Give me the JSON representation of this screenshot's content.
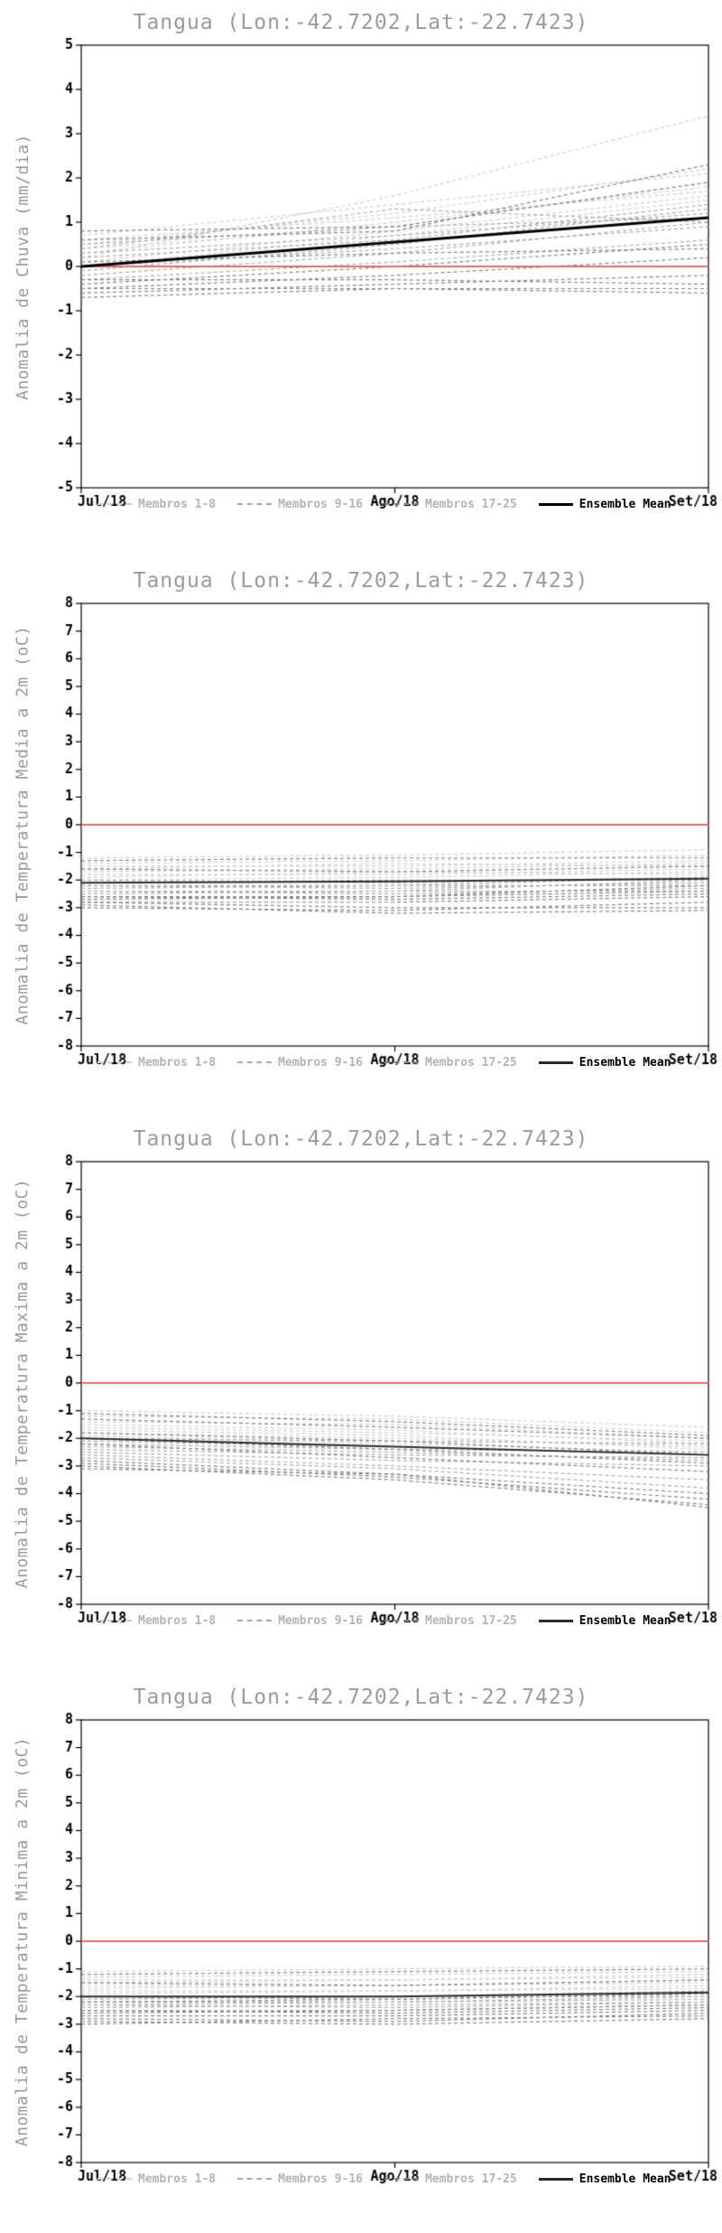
{
  "chart_data": [
    {
      "type": "line",
      "title": "Tangua (Lon:-42.7202,Lat:-22.7423)",
      "ylabel": "Anomalia de Chuva (mm/dia)",
      "ylim": [
        -5,
        5
      ],
      "y_step": 1,
      "x": [
        "Jul/18",
        "Ago/18",
        "Set/18"
      ],
      "reference_line": {
        "value": 0,
        "color": "#e06b6b"
      },
      "member_colors": [
        "#cfcfcf",
        "#ababab",
        "#858585"
      ],
      "mean_color": "#000000",
      "legend": [
        {
          "label": "Membros 1-8",
          "color": "#cfcfcf",
          "style": "dashed"
        },
        {
          "label": "Membros 9-16",
          "color": "#ababab",
          "style": "dashed"
        },
        {
          "label": "Membros 17-25",
          "color": "#858585",
          "style": "dashed"
        },
        {
          "label": "Ensemble Mean",
          "color": "#000000",
          "style": "solid"
        }
      ],
      "members": [
        [
          0.2,
          1.6,
          3.4
        ],
        [
          0.5,
          1.2,
          2.2
        ],
        [
          0.7,
          1.4,
          2.1
        ],
        [
          0.4,
          0.9,
          1.9
        ],
        [
          0.3,
          1.0,
          1.8
        ],
        [
          0.6,
          1.1,
          1.7
        ],
        [
          0.1,
          0.8,
          1.6
        ],
        [
          0.0,
          0.7,
          1.5
        ],
        [
          0.2,
          0.6,
          1.4
        ],
        [
          -0.1,
          0.5,
          1.3
        ],
        [
          0.3,
          0.7,
          1.2
        ],
        [
          0.5,
          0.9,
          1.1
        ],
        [
          -0.2,
          0.3,
          1.0
        ],
        [
          0.0,
          0.4,
          0.9
        ],
        [
          0.4,
          1.3,
          1.0
        ],
        [
          -0.3,
          0.1,
          0.6
        ],
        [
          -0.4,
          0.0,
          0.5
        ],
        [
          0.1,
          0.3,
          0.4
        ],
        [
          -0.5,
          -0.2,
          0.2
        ],
        [
          -0.6,
          -0.4,
          -0.2
        ],
        [
          -0.7,
          -0.5,
          -0.6
        ],
        [
          -0.3,
          -0.3,
          -0.4
        ],
        [
          0.8,
          0.9,
          1.9
        ],
        [
          -0.5,
          -0.5,
          -0.5
        ],
        [
          0.6,
          0.8,
          2.3
        ]
      ],
      "ensemble_mean": [
        0.0,
        0.55,
        1.1
      ]
    },
    {
      "type": "line",
      "title": "Tangua (Lon:-42.7202,Lat:-22.7423)",
      "ylabel": "Anomalia de Temperatura Media a 2m (oC)",
      "ylim": [
        -8,
        8
      ],
      "y_step": 1,
      "x": [
        "Jul/18",
        "Ago/18",
        "Set/18"
      ],
      "reference_line": {
        "value": 0,
        "color": "#e06b6b"
      },
      "member_colors": [
        "#cfcfcf",
        "#ababab",
        "#858585"
      ],
      "mean_color": "#2a2a2a",
      "legend": [
        {
          "label": "Membros 1-8",
          "color": "#cfcfcf",
          "style": "dashed"
        },
        {
          "label": "Membros 9-16",
          "color": "#ababab",
          "style": "dashed"
        },
        {
          "label": "Membros 17-25",
          "color": "#858585",
          "style": "dashed"
        },
        {
          "label": "Ensemble Mean",
          "color": "#2a2a2a",
          "style": "solid"
        }
      ],
      "members": [
        [
          -1.2,
          -1.1,
          -0.9
        ],
        [
          -1.4,
          -1.3,
          -1.1
        ],
        [
          -1.5,
          -1.5,
          -1.3
        ],
        [
          -1.6,
          -1.4,
          -1.5
        ],
        [
          -1.7,
          -1.6,
          -1.4
        ],
        [
          -1.8,
          -1.8,
          -1.6
        ],
        [
          -1.9,
          -1.7,
          -1.8
        ],
        [
          -2.0,
          -1.9,
          -1.7
        ],
        [
          -2.0,
          -2.1,
          -1.9
        ],
        [
          -2.1,
          -2.0,
          -2.0
        ],
        [
          -2.2,
          -2.2,
          -1.9
        ],
        [
          -2.2,
          -2.3,
          -2.1
        ],
        [
          -2.3,
          -2.2,
          -2.2
        ],
        [
          -2.4,
          -2.4,
          -2.0
        ],
        [
          -2.4,
          -2.5,
          -2.3
        ],
        [
          -2.5,
          -2.4,
          -2.4
        ],
        [
          -2.6,
          -2.6,
          -2.2
        ],
        [
          -2.6,
          -2.7,
          -2.5
        ],
        [
          -2.7,
          -2.6,
          -2.4
        ],
        [
          -2.8,
          -2.8,
          -2.6
        ],
        [
          -2.8,
          -3.0,
          -3.0
        ],
        [
          -3.0,
          -3.1,
          -2.8
        ],
        [
          -1.3,
          -1.2,
          -1.2
        ],
        [
          -2.9,
          -3.2,
          -3.1
        ],
        [
          -1.6,
          -1.7,
          -1.5
        ]
      ],
      "ensemble_mean": [
        -2.1,
        -2.05,
        -1.95
      ]
    },
    {
      "type": "line",
      "title": "Tangua (Lon:-42.7202,Lat:-22.7423)",
      "ylabel": "Anomalia de Temperatura Maxima a 2m (oC)",
      "ylim": [
        -8,
        8
      ],
      "y_step": 1,
      "x": [
        "Jul/18",
        "Ago/18",
        "Set/18"
      ],
      "reference_line": {
        "value": 0,
        "color": "#e06b6b"
      },
      "member_colors": [
        "#cfcfcf",
        "#ababab",
        "#858585"
      ],
      "mean_color": "#2a2a2a",
      "legend": [
        {
          "label": "Membros 1-8",
          "color": "#cfcfcf",
          "style": "dashed"
        },
        {
          "label": "Membros 9-16",
          "color": "#ababab",
          "style": "dashed"
        },
        {
          "label": "Membros 17-25",
          "color": "#858585",
          "style": "dashed"
        },
        {
          "label": "Ensemble Mean",
          "color": "#2a2a2a",
          "style": "solid"
        }
      ],
      "members": [
        [
          -1.0,
          -1.2,
          -1.6
        ],
        [
          -1.2,
          -1.3,
          -1.8
        ],
        [
          -1.4,
          -1.5,
          -2.0
        ],
        [
          -1.5,
          -1.7,
          -2.2
        ],
        [
          -1.6,
          -1.8,
          -2.1
        ],
        [
          -1.7,
          -1.9,
          -2.4
        ],
        [
          -1.8,
          -2.0,
          -2.3
        ],
        [
          -1.9,
          -2.2,
          -2.5
        ],
        [
          -2.0,
          -2.1,
          -2.2
        ],
        [
          -2.1,
          -2.3,
          -2.6
        ],
        [
          -2.2,
          -2.4,
          -2.5
        ],
        [
          -2.3,
          -2.5,
          -2.8
        ],
        [
          -2.4,
          -2.6,
          -2.7
        ],
        [
          -2.5,
          -2.8,
          -3.0
        ],
        [
          -2.6,
          -3.0,
          -3.5
        ],
        [
          -2.7,
          -3.1,
          -3.8
        ],
        [
          -2.8,
          -3.3,
          -4.0
        ],
        [
          -2.9,
          -3.4,
          -4.2
        ],
        [
          -3.0,
          -3.5,
          -4.4
        ],
        [
          -1.1,
          -1.4,
          -1.9
        ],
        [
          -1.3,
          -1.6,
          -2.0
        ],
        [
          -2.0,
          -2.4,
          -2.9
        ],
        [
          -2.2,
          -2.7,
          -3.2
        ],
        [
          -3.1,
          -3.3,
          -4.5
        ],
        [
          -1.8,
          -2.1,
          -2.6
        ]
      ],
      "ensemble_mean": [
        -2.0,
        -2.3,
        -2.6
      ]
    },
    {
      "type": "line",
      "title": "Tangua (Lon:-42.7202,Lat:-22.7423)",
      "ylabel": "Anomalia de Temperatura Minima a 2m (oC)",
      "ylim": [
        -8,
        8
      ],
      "y_step": 1,
      "x": [
        "Jul/18",
        "Ago/18",
        "Set/18"
      ],
      "reference_line": {
        "value": 0,
        "color": "#e06b6b"
      },
      "member_colors": [
        "#cfcfcf",
        "#ababab",
        "#858585"
      ],
      "mean_color": "#2a2a2a",
      "legend": [
        {
          "label": "Membros 1-8",
          "color": "#cfcfcf",
          "style": "dashed"
        },
        {
          "label": "Membros 9-16",
          "color": "#ababab",
          "style": "dashed"
        },
        {
          "label": "Membros 17-25",
          "color": "#858585",
          "style": "dashed"
        },
        {
          "label": "Ensemble Mean",
          "color": "#2a2a2a",
          "style": "solid"
        }
      ],
      "members": [
        [
          -1.1,
          -1.0,
          -0.9
        ],
        [
          -1.3,
          -1.2,
          -1.1
        ],
        [
          -1.4,
          -1.4,
          -1.2
        ],
        [
          -1.5,
          -1.4,
          -1.3
        ],
        [
          -1.6,
          -1.6,
          -1.4
        ],
        [
          -1.7,
          -1.6,
          -1.5
        ],
        [
          -1.8,
          -1.8,
          -1.6
        ],
        [
          -1.9,
          -1.8,
          -1.7
        ],
        [
          -2.0,
          -2.0,
          -1.8
        ],
        [
          -2.0,
          -2.1,
          -1.9
        ],
        [
          -2.1,
          -2.0,
          -2.0
        ],
        [
          -2.2,
          -2.2,
          -2.1
        ],
        [
          -2.3,
          -2.2,
          -2.0
        ],
        [
          -2.3,
          -2.4,
          -2.2
        ],
        [
          -2.4,
          -2.3,
          -2.2
        ],
        [
          -2.5,
          -2.5,
          -2.3
        ],
        [
          -2.5,
          -2.6,
          -2.4
        ],
        [
          -2.6,
          -2.5,
          -2.3
        ],
        [
          -2.7,
          -2.7,
          -2.5
        ],
        [
          -2.8,
          -2.9,
          -2.6
        ],
        [
          -2.9,
          -3.0,
          -2.8
        ],
        [
          -1.2,
          -1.1,
          -1.0
        ],
        [
          -3.0,
          -2.8,
          -2.7
        ],
        [
          -1.5,
          -1.6,
          -1.4
        ],
        [
          -2.2,
          -2.1,
          -1.9
        ]
      ],
      "ensemble_mean": [
        -2.0,
        -2.0,
        -1.85
      ]
    }
  ]
}
